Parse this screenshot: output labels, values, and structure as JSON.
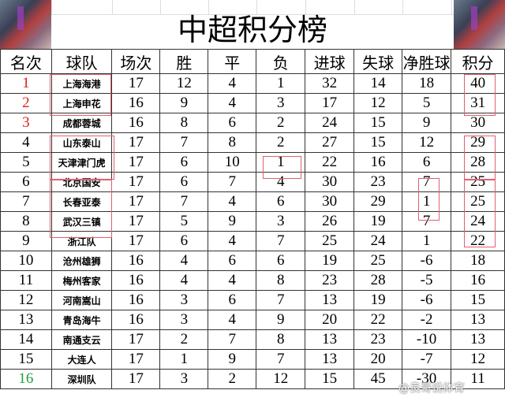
{
  "title": "中超积分榜",
  "headers": [
    "名次",
    "球队",
    "场次",
    "胜",
    "平",
    "负",
    "进球",
    "失球",
    "净胜球",
    "积分"
  ],
  "rank_colors": {
    "top": "#e02020",
    "relegation": "#20a040",
    "default": "#000000"
  },
  "highlight_color": "#e06070",
  "rows": [
    [
      "1",
      "上海海港",
      "17",
      "12",
      "4",
      "1",
      "32",
      "14",
      "18",
      "40"
    ],
    [
      "2",
      "上海申花",
      "16",
      "9",
      "4",
      "3",
      "17",
      "12",
      "5",
      "31"
    ],
    [
      "3",
      "成都蓉城",
      "16",
      "8",
      "6",
      "2",
      "24",
      "15",
      "9",
      "30"
    ],
    [
      "4",
      "山东泰山",
      "17",
      "7",
      "8",
      "2",
      "27",
      "15",
      "12",
      "29"
    ],
    [
      "5",
      "天津津门虎",
      "17",
      "6",
      "10",
      "1",
      "22",
      "16",
      "6",
      "28"
    ],
    [
      "6",
      "北京国安",
      "17",
      "6",
      "7",
      "4",
      "30",
      "23",
      "7",
      "25"
    ],
    [
      "7",
      "长春亚泰",
      "17",
      "7",
      "4",
      "6",
      "30",
      "29",
      "1",
      "25"
    ],
    [
      "8",
      "武汉三镇",
      "17",
      "5",
      "9",
      "3",
      "26",
      "19",
      "7",
      "24"
    ],
    [
      "9",
      "浙江队",
      "17",
      "6",
      "4",
      "7",
      "25",
      "24",
      "1",
      "22"
    ],
    [
      "10",
      "沧州雄狮",
      "16",
      "4",
      "6",
      "6",
      "19",
      "25",
      "-6",
      "18"
    ],
    [
      "11",
      "梅州客家",
      "16",
      "4",
      "4",
      "8",
      "23",
      "28",
      "-5",
      "16"
    ],
    [
      "12",
      "河南嵩山",
      "16",
      "3",
      "6",
      "7",
      "13",
      "19",
      "-6",
      "15"
    ],
    [
      "13",
      "青岛海牛",
      "16",
      "3",
      "4",
      "9",
      "20",
      "22",
      "-2",
      "13"
    ],
    [
      "14",
      "南通支云",
      "17",
      "2",
      "7",
      "8",
      "13",
      "23",
      "-10",
      "13"
    ],
    [
      "15",
      "大连人",
      "17",
      "1",
      "9",
      "7",
      "13",
      "20",
      "-7",
      "12"
    ],
    [
      "16",
      "深圳队",
      "17",
      "3",
      "2",
      "12",
      "15",
      "45",
      "-30",
      "11"
    ]
  ],
  "watermark": "@良哥说体育"
}
